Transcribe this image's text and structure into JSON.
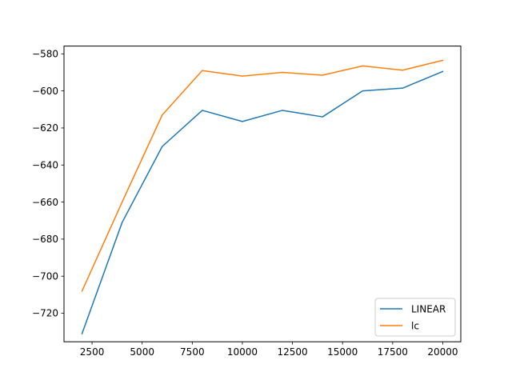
{
  "chart_data": {
    "type": "line",
    "title": "",
    "xlabel": "",
    "ylabel": "",
    "xlim": [
      1100,
      20900
    ],
    "ylim": [
      -735.4,
      -575.8
    ],
    "x_ticks": [
      2500,
      5000,
      7500,
      10000,
      12500,
      15000,
      17500,
      20000
    ],
    "y_ticks": [
      -580,
      -600,
      -620,
      -640,
      -660,
      -680,
      -700,
      -720
    ],
    "x_tick_labels": [
      "2500",
      "5000",
      "7500",
      "10000",
      "12500",
      "15000",
      "17500",
      "20000"
    ],
    "y_tick_labels": [
      "−580",
      "−600",
      "−620",
      "−640",
      "−660",
      "−680",
      "−700",
      "−720"
    ],
    "grid": false,
    "legend_position": "lower right",
    "series": [
      {
        "name": "LINEAR",
        "color": "#1f77b4",
        "x": [
          2000,
          4000,
          6000,
          8000,
          10000,
          12000,
          14000,
          16000,
          18000,
          20000
        ],
        "y": [
          -731,
          -671,
          -630,
          -610.5,
          -616.5,
          -610.5,
          -614,
          -600,
          -598.5,
          -589.5
        ]
      },
      {
        "name": "lc",
        "color": "#ff7f0e",
        "x": [
          2000,
          4000,
          6000,
          8000,
          10000,
          12000,
          14000,
          16000,
          18000,
          20000
        ],
        "y": [
          -708,
          -660,
          -613,
          -589,
          -592,
          -590,
          -591.5,
          -586.5,
          -588.8,
          -583.5
        ]
      }
    ]
  }
}
